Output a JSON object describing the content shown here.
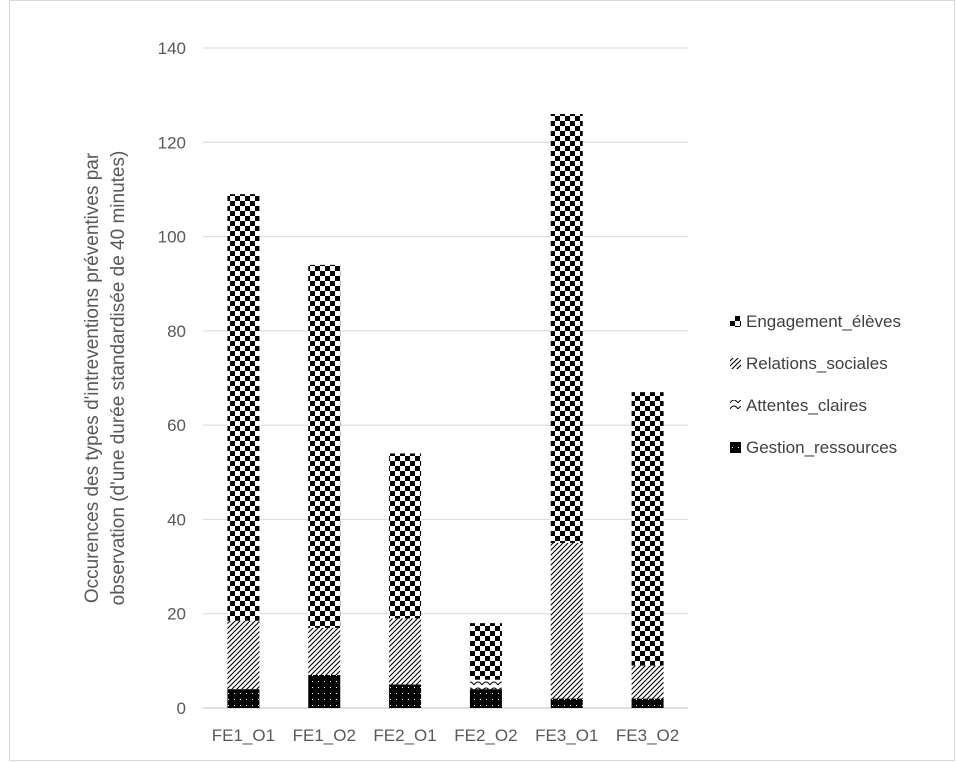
{
  "chart_data": {
    "type": "bar",
    "stacked": true,
    "title": "",
    "xlabel": "",
    "ylabel": "Occurences des types d'intreventions préventives par observation (d'une durée standardisée de 40 minutes)",
    "ylim": [
      0,
      140
    ],
    "yticks": [
      0,
      20,
      40,
      60,
      80,
      100,
      120,
      140
    ],
    "grid": true,
    "legend_position": "right",
    "categories": [
      "FE1_O1",
      "FE1_O2",
      "FE2_O1",
      "FE2_O2",
      "FE3_O1",
      "FE3_O2"
    ],
    "series": [
      {
        "name": "Gestion_ressources",
        "pattern": "solid-dots",
        "color": "#000000",
        "values": [
          4,
          7,
          5,
          4,
          2,
          2
        ]
      },
      {
        "name": "Attentes_claires",
        "pattern": "scales",
        "color": "#000000",
        "values": [
          0,
          0,
          0,
          2,
          0,
          0
        ]
      },
      {
        "name": "Relations_sociales",
        "pattern": "diagonal-hatch",
        "color": "#000000",
        "values": [
          14.5,
          10,
          14,
          0,
          33,
          7
        ]
      },
      {
        "name": "Engagement_élèves",
        "pattern": "checker",
        "color": "#000000",
        "values": [
          90.5,
          77,
          35,
          12,
          91,
          58
        ]
      }
    ],
    "legend_order": [
      "Engagement_élèves",
      "Relations_sociales",
      "Attentes_claires",
      "Gestion_ressources"
    ]
  }
}
